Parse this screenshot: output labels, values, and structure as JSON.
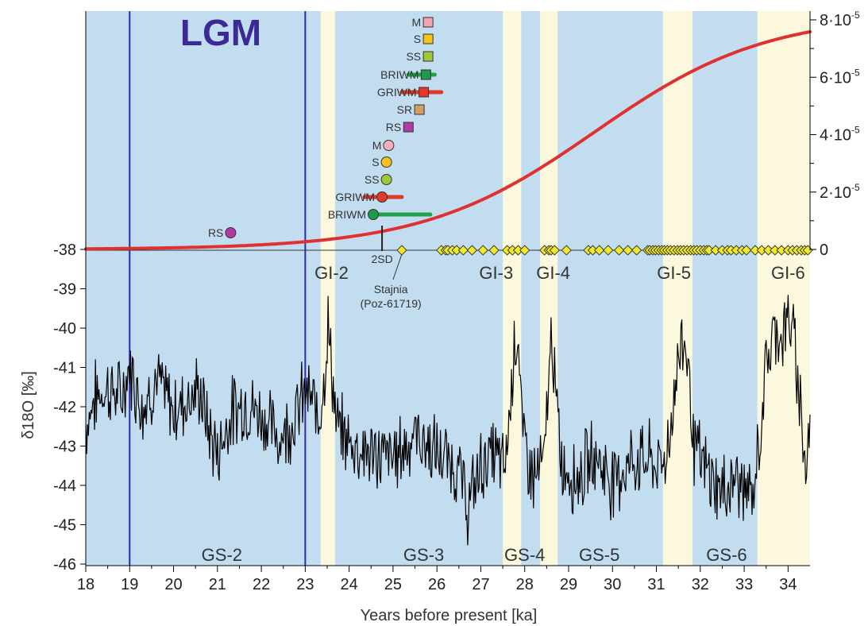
{
  "chart_data": {
    "type": "line",
    "title": "LGM",
    "xlabel": "Years before present [ka]",
    "ylabel": "δ18O [‰]",
    "xlim": [
      18,
      34.5
    ],
    "x_ticks": [
      18,
      19,
      20,
      21,
      22,
      23,
      24,
      25,
      26,
      27,
      28,
      29,
      30,
      31,
      32,
      33,
      34
    ],
    "ylim_left": [
      -46,
      -38
    ],
    "left_ticks": [
      -38,
      -39,
      -40,
      -41,
      -42,
      -43,
      -44,
      -45,
      -46
    ],
    "right_axis": {
      "ylim": [
        0,
        8e-05
      ],
      "tick_labels": [
        {
          "value": 0,
          "label": "0",
          "exp": ""
        },
        {
          "value": 2e-05,
          "label": "2·10",
          "exp": "-5"
        },
        {
          "value": 4e-05,
          "label": "4·10",
          "exp": "-5"
        },
        {
          "value": 6e-05,
          "label": "6·10",
          "exp": "-5"
        },
        {
          "value": 8e-05,
          "label": "8·10",
          "exp": "-5"
        }
      ],
      "minor_ticks": [
        1e-05,
        3e-05,
        5e-05,
        7e-05
      ]
    },
    "colors": {
      "stadial": "#c3ddf0",
      "interstadial": "#fbf8dd",
      "delta18O_line": "#000000",
      "cumulative_line": "#e03030",
      "lgm_bounds": "#2b2bb0",
      "date_marker": "#f0ea2a"
    },
    "interstadial_bands": [
      [
        23.35,
        23.68
      ],
      [
        27.5,
        27.92
      ],
      [
        28.35,
        28.75
      ],
      [
        31.15,
        31.82
      ],
      [
        33.3,
        34.5
      ]
    ],
    "lgm_bounds": [
      19,
      23
    ],
    "stadial_labels": [
      {
        "text": "GS-2",
        "x": 21.1
      },
      {
        "text": "GS-3",
        "x": 25.7
      },
      {
        "text": "GS-4",
        "x": 28.0
      },
      {
        "text": "GS-5",
        "x": 29.7
      },
      {
        "text": "GS-6",
        "x": 32.6
      }
    ],
    "interstadial_labels": [
      {
        "text": "GI-2",
        "x": 23.6
      },
      {
        "text": "GI-3",
        "x": 27.35
      },
      {
        "text": "GI-4",
        "x": 28.65
      },
      {
        "text": "GI-5",
        "x": 31.4
      },
      {
        "text": "GI-6",
        "x": 34.0
      }
    ],
    "delta18O_anchors": [
      [
        18.0,
        -42.5
      ],
      [
        18.2,
        -41.8
      ],
      [
        18.5,
        -41.5
      ],
      [
        18.8,
        -41.8
      ],
      [
        19.0,
        -41.0
      ],
      [
        19.3,
        -42.0
      ],
      [
        19.6,
        -41.3
      ],
      [
        20.0,
        -42.1
      ],
      [
        20.3,
        -41.8
      ],
      [
        20.6,
        -41.6
      ],
      [
        20.8,
        -42.6
      ],
      [
        21.0,
        -43.2
      ],
      [
        21.3,
        -42.2
      ],
      [
        21.6,
        -41.9
      ],
      [
        22.0,
        -42.2
      ],
      [
        22.4,
        -42.8
      ],
      [
        22.8,
        -42.2
      ],
      [
        23.0,
        -41.6
      ],
      [
        23.2,
        -42.0
      ],
      [
        23.3,
        -42.3
      ],
      [
        23.45,
        -41.0
      ],
      [
        23.52,
        -40.0
      ],
      [
        23.6,
        -40.9
      ],
      [
        23.7,
        -42.5
      ],
      [
        24.0,
        -42.9
      ],
      [
        24.5,
        -43.2
      ],
      [
        25.0,
        -43.3
      ],
      [
        25.5,
        -42.7
      ],
      [
        26.0,
        -43.2
      ],
      [
        26.5,
        -43.6
      ],
      [
        26.7,
        -44.6
      ],
      [
        27.0,
        -43.5
      ],
      [
        27.3,
        -43.2
      ],
      [
        27.55,
        -43.6
      ],
      [
        27.68,
        -41.8
      ],
      [
        27.78,
        -40.1
      ],
      [
        27.85,
        -40.2
      ],
      [
        27.95,
        -42.8
      ],
      [
        28.2,
        -43.8
      ],
      [
        28.45,
        -43.4
      ],
      [
        28.55,
        -41.2
      ],
      [
        28.62,
        -40.0
      ],
      [
        28.7,
        -41.8
      ],
      [
        28.85,
        -43.5
      ],
      [
        29.2,
        -43.8
      ],
      [
        29.6,
        -43.2
      ],
      [
        30.0,
        -43.9
      ],
      [
        30.4,
        -43.4
      ],
      [
        30.8,
        -43.3
      ],
      [
        31.1,
        -43.6
      ],
      [
        31.3,
        -42.8
      ],
      [
        31.45,
        -41.2
      ],
      [
        31.58,
        -40.3
      ],
      [
        31.7,
        -40.5
      ],
      [
        31.85,
        -43.0
      ],
      [
        32.1,
        -43.6
      ],
      [
        32.5,
        -44.2
      ],
      [
        32.8,
        -43.8
      ],
      [
        33.2,
        -44.4
      ],
      [
        33.35,
        -42.8
      ],
      [
        33.5,
        -41.0
      ],
      [
        33.7,
        -40.0
      ],
      [
        33.9,
        -40.2
      ],
      [
        34.0,
        -39.7
      ],
      [
        34.15,
        -40.5
      ],
      [
        34.3,
        -42.0
      ],
      [
        34.4,
        -43.7
      ],
      [
        34.5,
        -42.5
      ]
    ],
    "delta18O_seed": 7,
    "cumulative_curve": {
      "start": 0,
      "end": 8.2e-05,
      "center": 29.6,
      "scale": 1.95,
      "x_end": 34.5
    },
    "dates": [
      25.2,
      26.1,
      26.2,
      26.25,
      26.35,
      26.45,
      26.6,
      26.8,
      27.05,
      27.3,
      27.6,
      27.72,
      27.85,
      28.0,
      28.45,
      28.55,
      28.6,
      28.68,
      28.95,
      29.45,
      29.55,
      29.7,
      29.9,
      30.15,
      30.35,
      30.55,
      30.8,
      30.85,
      30.92,
      30.98,
      31.05,
      31.12,
      31.18,
      31.25,
      31.32,
      31.4,
      31.48,
      31.55,
      31.62,
      31.7,
      31.78,
      31.85,
      31.92,
      32.0,
      32.08,
      32.15,
      32.2,
      32.35,
      32.5,
      32.62,
      32.7,
      32.82,
      32.95,
      33.05,
      33.25,
      33.4,
      33.55,
      33.7,
      33.85,
      34.0,
      34.1,
      34.2,
      34.3,
      34.38,
      34.45
    ],
    "dated_sample": {
      "x": 25.2,
      "line1": "Stajnia",
      "line2": "(Poz-61719)"
    },
    "two_sd_label": "2SD",
    "models": [
      {
        "label": "M",
        "shape": "square",
        "x": 25.8,
        "color": "#f4a3b3"
      },
      {
        "label": "S",
        "shape": "square",
        "x": 25.8,
        "color": "#f7c21a"
      },
      {
        "label": "SS",
        "shape": "square",
        "x": 25.8,
        "color": "#9fc73a"
      },
      {
        "label": "BRIWM",
        "shape": "square",
        "x": 25.75,
        "color": "#1f9a4a",
        "range": [
          25.35,
          25.95
        ],
        "range_color": "#1fa24a"
      },
      {
        "label": "GRIWM",
        "shape": "square",
        "x": 25.7,
        "color": "#e23a2a",
        "range": [
          25.2,
          26.1
        ],
        "range_color": "#e23a2a"
      },
      {
        "label": "SR",
        "shape": "square",
        "x": 25.6,
        "color": "#d0a060"
      },
      {
        "label": "RS",
        "shape": "square",
        "x": 25.35,
        "color": "#b23aa8"
      },
      {
        "label": "M",
        "shape": "circle",
        "x": 24.9,
        "color": "#f4b0b8"
      },
      {
        "label": "S",
        "shape": "circle",
        "x": 24.85,
        "color": "#f7c21a"
      },
      {
        "label": "SS",
        "shape": "circle",
        "x": 24.85,
        "color": "#9fc73a"
      },
      {
        "label": "GRIWM",
        "shape": "circle",
        "x": 24.75,
        "color": "#e23a2a",
        "range": [
          24.35,
          25.2
        ],
        "range_color": "#e23a2a"
      },
      {
        "label": "BRIWM",
        "shape": "circle",
        "x": 24.55,
        "color": "#1f9a4a",
        "range": [
          24.5,
          25.85
        ],
        "range_color": "#1fa24a"
      },
      {
        "label": "RS",
        "shape": "circle",
        "x": 21.3,
        "color": "#b23aa8"
      }
    ]
  }
}
